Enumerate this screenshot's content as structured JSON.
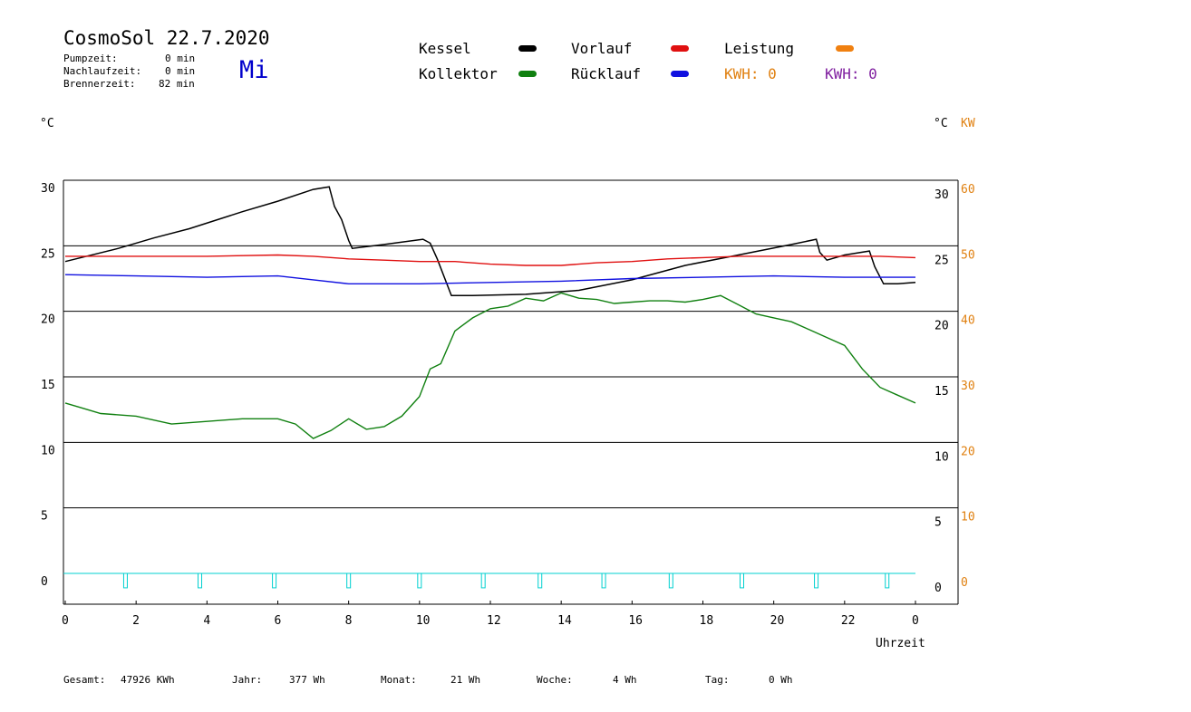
{
  "header": {
    "title": "CosmoSol 22.7.2020",
    "day": "Mi",
    "stats": [
      {
        "label": "Pumpzeit:",
        "value": "0 min"
      },
      {
        "label": "Nachlaufzeit:",
        "value": "0 min"
      },
      {
        "label": "Brennerzeit:",
        "value": "82 min"
      }
    ]
  },
  "legend": {
    "kessel": {
      "label": "Kessel",
      "color": "#000000"
    },
    "vorlauf": {
      "label": "Vorlauf",
      "color": "#e01010"
    },
    "leistung": {
      "label": "Leistung",
      "color": "#f08010"
    },
    "kollektor": {
      "label": "Kollektor",
      "color": "#108010"
    },
    "ruecklauf": {
      "label": "Rücklauf",
      "color": "#1010e0"
    },
    "kwh1": "KWH: 0",
    "kwh2": "KWH: 0",
    "kwh1_color": "#e08010",
    "kwh2_color": "#8020a0"
  },
  "axis_units": {
    "left": "°C",
    "right_temp": "°C",
    "right_power": "KW",
    "x": "Uhrzeit"
  },
  "footer": [
    {
      "label": "Gesamt:",
      "value": "47926 KWh"
    },
    {
      "label": "Jahr:",
      "value": "377 Wh"
    },
    {
      "label": "Monat:",
      "value": "21 Wh"
    },
    {
      "label": "Woche:",
      "value": "4 Wh"
    },
    {
      "label": "Tag:",
      "value": "0 Wh"
    }
  ],
  "chart_data": {
    "type": "line",
    "xlabel": "Uhrzeit",
    "ylabel": "°C",
    "xlim": [
      0,
      24
    ],
    "ylim": [
      -2.5,
      30
    ],
    "y2lim": [
      -5,
      60
    ],
    "x_tick_labels": [
      "0",
      "2",
      "4",
      "6",
      "8",
      "10",
      "12",
      "14",
      "16",
      "18",
      "20",
      "22",
      "0"
    ],
    "y_ticks": [
      0,
      5,
      10,
      15,
      20,
      25,
      30
    ],
    "y2_ticks": [
      0,
      10,
      20,
      30,
      40,
      50,
      60
    ],
    "grid": true,
    "series": [
      {
        "name": "Kessel",
        "color": "#000000",
        "x": [
          0,
          1.5,
          2.5,
          3.5,
          5,
          6,
          7,
          7.45,
          7.6,
          7.8,
          8.0,
          8.1,
          9,
          10.1,
          10.3,
          10.5,
          10.9,
          11.5,
          13,
          14.5,
          16,
          17.5,
          19,
          20.5,
          21.2,
          21.3,
          21.5,
          22,
          22.7,
          22.85,
          23.1,
          23.5,
          24
        ],
        "y": [
          23.8,
          24.8,
          25.6,
          26.3,
          27.6,
          28.4,
          29.3,
          29.5,
          28.0,
          27.0,
          25.4,
          24.8,
          25.1,
          25.5,
          25.2,
          24.0,
          21.2,
          21.2,
          21.3,
          21.6,
          22.4,
          23.5,
          24.3,
          25.1,
          25.5,
          24.5,
          23.9,
          24.3,
          24.6,
          23.4,
          22.1,
          22.1,
          22.2
        ]
      },
      {
        "name": "Vorlauf",
        "color": "#e01010",
        "x": [
          0,
          2,
          4,
          6,
          7,
          8,
          9,
          10,
          11,
          12,
          13,
          14,
          15,
          16,
          17,
          18,
          19,
          20,
          21,
          22,
          23,
          24
        ],
        "y": [
          24.2,
          24.2,
          24.2,
          24.3,
          24.2,
          24.0,
          23.9,
          23.8,
          23.8,
          23.6,
          23.5,
          23.5,
          23.7,
          23.8,
          24.0,
          24.1,
          24.2,
          24.2,
          24.2,
          24.2,
          24.2,
          24.1
        ]
      },
      {
        "name": "Kollektor",
        "color": "#108010",
        "x": [
          0,
          0.5,
          1,
          2,
          3,
          4,
          5,
          6,
          6.5,
          7,
          7.5,
          8,
          8.5,
          9,
          9.5,
          10,
          10.3,
          10.6,
          11,
          11.5,
          12,
          12.5,
          13,
          13.5,
          14,
          14.5,
          15,
          15.5,
          16,
          16.5,
          17,
          17.5,
          18,
          18.5,
          19,
          19.5,
          20,
          20.5,
          21,
          21.5,
          22,
          22.5,
          23,
          23.5,
          24
        ],
        "y": [
          13.0,
          12.6,
          12.2,
          12.0,
          11.4,
          11.6,
          11.8,
          11.8,
          11.4,
          10.3,
          10.9,
          11.8,
          11.0,
          11.2,
          12.0,
          13.5,
          15.6,
          16.0,
          18.5,
          19.5,
          20.2,
          20.4,
          21.0,
          20.8,
          21.4,
          21.0,
          20.9,
          20.6,
          20.7,
          20.8,
          20.8,
          20.7,
          20.9,
          21.2,
          20.5,
          19.8,
          19.5,
          19.2,
          18.6,
          18.0,
          17.4,
          15.6,
          14.2,
          13.6,
          13.0
        ]
      },
      {
        "name": "Rücklauf",
        "color": "#1010e0",
        "x": [
          0,
          2,
          4,
          6,
          7,
          8,
          10,
          12,
          14,
          16,
          18,
          20,
          22,
          24
        ],
        "y": [
          22.8,
          22.7,
          22.6,
          22.7,
          22.4,
          22.1,
          22.1,
          22.2,
          22.3,
          22.5,
          22.6,
          22.7,
          22.6,
          22.6
        ]
      },
      {
        "name": "Leistung",
        "color": "#00d0d0",
        "x": [
          1.7,
          3.8,
          5.9,
          8.0,
          10.0,
          11.8,
          13.4,
          15.2,
          17.1,
          19.1,
          21.2,
          23.2
        ],
        "y": [
          -1.1,
          -1.1,
          -1.1,
          -1.1,
          -1.1,
          -1.1,
          -1.1,
          -1.1,
          -1.1,
          -1.1,
          -1.1,
          -1.1
        ]
      }
    ]
  }
}
